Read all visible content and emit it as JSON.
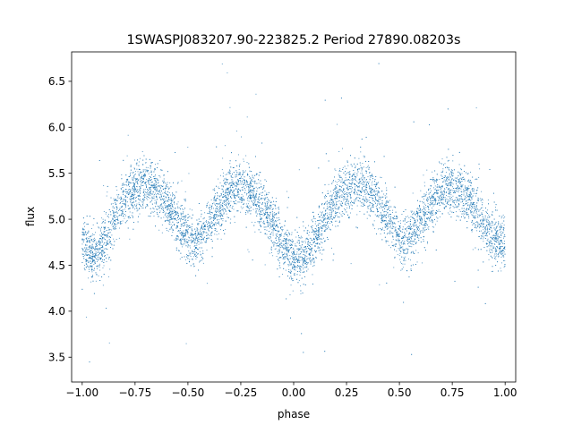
{
  "chart_data": {
    "type": "scatter",
    "title": "1SWASPJ083207.90-223825.2 Period 27890.08203s",
    "xlabel": "phase",
    "ylabel": "flux",
    "xlim": [
      -1.05,
      1.05
    ],
    "ylim": [
      3.23,
      6.82
    ],
    "x_ticks": [
      -1.0,
      -0.75,
      -0.5,
      -0.25,
      0.0,
      0.25,
      0.5,
      0.75,
      1.0
    ],
    "x_tick_labels": [
      "−1.00",
      "−0.75",
      "−0.50",
      "−0.25",
      "0.00",
      "0.25",
      "0.50",
      "0.75",
      "1.00"
    ],
    "y_ticks": [
      3.5,
      4.0,
      4.5,
      5.0,
      5.5,
      6.0,
      6.5
    ],
    "y_tick_labels": [
      "3.5",
      "4.0",
      "4.5",
      "5.0",
      "5.5",
      "6.0",
      "6.5"
    ],
    "grid": false,
    "legend": "none",
    "marker_color": "#1f77b4",
    "series": [
      {
        "x": [
          -1.0,
          -0.975,
          -0.95,
          -0.925,
          -0.9,
          -0.875,
          -0.85,
          -0.825,
          -0.8,
          -0.775,
          -0.75,
          -0.725,
          -0.7,
          -0.675,
          -0.65,
          -0.625,
          -0.6,
          -0.575,
          -0.55,
          -0.525,
          -0.5,
          -0.475,
          -0.45,
          -0.425,
          -0.4,
          -0.375,
          -0.35,
          -0.325,
          -0.3,
          -0.275,
          -0.25,
          -0.225,
          -0.2,
          -0.175,
          -0.15,
          -0.125,
          -0.1,
          -0.075,
          -0.05,
          -0.025,
          0.0,
          0.025,
          0.05,
          0.075,
          0.1,
          0.125,
          0.15,
          0.175,
          0.2,
          0.225,
          0.25,
          0.275,
          0.3,
          0.325,
          0.35,
          0.375,
          0.4,
          0.425,
          0.45,
          0.475,
          0.5,
          0.525,
          0.55,
          0.575,
          0.6,
          0.625,
          0.65,
          0.675,
          0.7,
          0.725,
          0.75,
          0.775,
          0.8,
          0.825,
          0.85,
          0.875,
          0.9,
          0.925,
          0.95,
          0.975,
          1.0
        ],
        "y": [
          4.74,
          4.66,
          4.6,
          4.65,
          4.76,
          4.88,
          5.0,
          5.1,
          5.2,
          5.28,
          5.33,
          5.37,
          5.38,
          5.37,
          5.33,
          5.26,
          5.18,
          5.08,
          4.98,
          4.88,
          4.8,
          4.75,
          4.78,
          4.86,
          4.96,
          5.06,
          5.15,
          5.23,
          5.29,
          5.33,
          5.34,
          5.33,
          5.29,
          5.23,
          5.15,
          5.06,
          4.96,
          4.84,
          4.72,
          4.62,
          4.55,
          4.56,
          4.6,
          4.67,
          4.77,
          4.88,
          5.0,
          5.1,
          5.2,
          5.28,
          5.33,
          5.37,
          5.38,
          5.37,
          5.33,
          5.26,
          5.18,
          5.08,
          4.98,
          4.88,
          4.8,
          4.75,
          4.78,
          4.86,
          4.96,
          5.06,
          5.15,
          5.23,
          5.29,
          5.33,
          5.34,
          5.33,
          5.29,
          5.23,
          5.15,
          5.06,
          4.96,
          4.86,
          4.8,
          4.77,
          4.74
        ]
      }
    ]
  }
}
